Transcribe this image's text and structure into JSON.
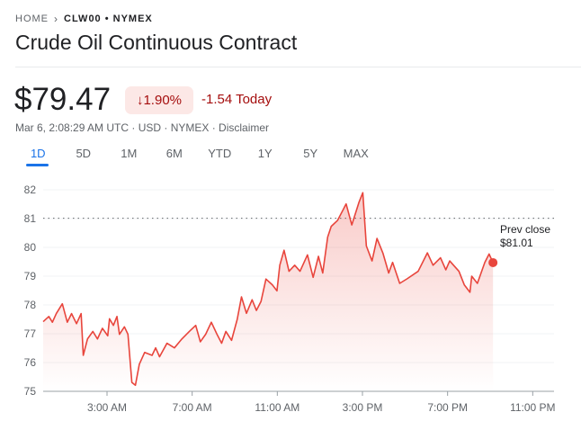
{
  "breadcrumb": {
    "home": "HOME",
    "current": "CLW00 • NYMEX"
  },
  "title": "Crude Oil Continuous Contract",
  "quote": {
    "price": "$79.47",
    "change_percent": "1.90%",
    "change_direction": "down",
    "change_today": "-1.54 Today",
    "meta": "Mar 6, 2:08:29 AM UTC · USD · NYMEX · Disclaimer"
  },
  "tabs": [
    {
      "label": "1D",
      "active": true
    },
    {
      "label": "5D"
    },
    {
      "label": "1M"
    },
    {
      "label": "6M"
    },
    {
      "label": "YTD"
    },
    {
      "label": "1Y"
    },
    {
      "label": "5Y"
    },
    {
      "label": "MAX"
    }
  ],
  "colors": {
    "line": "#e8453c",
    "negative": "#a50e0e",
    "badge_bg": "#fce8e6",
    "accent": "#1a73e8"
  },
  "chart_data": {
    "type": "area",
    "xlim": [
      "0:00",
      "24:00"
    ],
    "ylim": [
      75,
      82
    ],
    "y_ticks": [
      "75",
      "76",
      "77",
      "78",
      "79",
      "80",
      "81",
      "82"
    ],
    "x_ticks": [
      {
        "label": "3:00 AM",
        "t": "3:00"
      },
      {
        "label": "7:00 AM",
        "t": "7:00"
      },
      {
        "label": "11:00 AM",
        "t": "11:00"
      },
      {
        "label": "3:00 PM",
        "t": "15:00"
      },
      {
        "label": "7:00 PM",
        "t": "19:00"
      },
      {
        "label": "11:00 PM",
        "t": "23:00"
      }
    ],
    "grid": true,
    "prev_close": {
      "value": 81.01,
      "label": "Prev close",
      "value_label": "$81.01"
    },
    "points": [
      [
        "0:00",
        77.42
      ],
      [
        "0:16",
        77.6
      ],
      [
        "0:26",
        77.4
      ],
      [
        "0:37",
        77.7
      ],
      [
        "0:54",
        78.04
      ],
      [
        "1:08",
        77.4
      ],
      [
        "1:20",
        77.7
      ],
      [
        "1:34",
        77.35
      ],
      [
        "1:47",
        77.7
      ],
      [
        "1:53",
        76.25
      ],
      [
        "2:05",
        76.82
      ],
      [
        "2:20",
        77.08
      ],
      [
        "2:33",
        76.82
      ],
      [
        "2:47",
        77.19
      ],
      [
        "3:02",
        76.93
      ],
      [
        "3:07",
        77.52
      ],
      [
        "3:18",
        77.29
      ],
      [
        "3:28",
        77.6
      ],
      [
        "3:35",
        76.98
      ],
      [
        "3:49",
        77.24
      ],
      [
        "3:59",
        76.98
      ],
      [
        "4:10",
        75.31
      ],
      [
        "4:20",
        75.21
      ],
      [
        "4:31",
        75.94
      ],
      [
        "4:46",
        76.35
      ],
      [
        "5:07",
        76.25
      ],
      [
        "5:17",
        76.51
      ],
      [
        "5:28",
        76.2
      ],
      [
        "5:49",
        76.67
      ],
      [
        "6:10",
        76.51
      ],
      [
        "6:31",
        76.82
      ],
      [
        "6:52",
        77.08
      ],
      [
        "7:10",
        77.29
      ],
      [
        "7:23",
        76.72
      ],
      [
        "7:38",
        76.98
      ],
      [
        "7:54",
        77.4
      ],
      [
        "8:10",
        76.98
      ],
      [
        "8:23",
        76.67
      ],
      [
        "8:35",
        77.08
      ],
      [
        "8:51",
        76.77
      ],
      [
        "9:07",
        77.5
      ],
      [
        "9:19",
        78.28
      ],
      [
        "9:33",
        77.71
      ],
      [
        "9:49",
        78.18
      ],
      [
        "10:01",
        77.81
      ],
      [
        "10:14",
        78.12
      ],
      [
        "10:28",
        78.9
      ],
      [
        "10:46",
        78.7
      ],
      [
        "10:59",
        78.49
      ],
      [
        "11:07",
        79.38
      ],
      [
        "11:19",
        79.9
      ],
      [
        "11:33",
        79.17
      ],
      [
        "11:49",
        79.38
      ],
      [
        "12:04",
        79.17
      ],
      [
        "12:25",
        79.74
      ],
      [
        "12:41",
        78.96
      ],
      [
        "12:56",
        79.69
      ],
      [
        "13:08",
        79.11
      ],
      [
        "13:22",
        80.36
      ],
      [
        "13:32",
        80.73
      ],
      [
        "13:50",
        80.94
      ],
      [
        "14:14",
        81.51
      ],
      [
        "14:30",
        80.78
      ],
      [
        "14:50",
        81.56
      ],
      [
        "15:01",
        81.9
      ],
      [
        "15:11",
        80.05
      ],
      [
        "15:27",
        79.53
      ],
      [
        "15:41",
        80.31
      ],
      [
        "15:58",
        79.79
      ],
      [
        "16:14",
        79.11
      ],
      [
        "16:25",
        79.48
      ],
      [
        "16:45",
        78.75
      ],
      [
        "17:06",
        78.91
      ],
      [
        "17:37",
        79.17
      ],
      [
        "18:03",
        79.81
      ],
      [
        "18:19",
        79.38
      ],
      [
        "18:40",
        79.64
      ],
      [
        "18:55",
        79.22
      ],
      [
        "19:06",
        79.53
      ],
      [
        "19:32",
        79.17
      ],
      [
        "19:47",
        78.7
      ],
      [
        "20:03",
        78.44
      ],
      [
        "20:08",
        79.0
      ],
      [
        "20:24",
        78.75
      ],
      [
        "20:45",
        79.48
      ],
      [
        "20:57",
        79.77
      ],
      [
        "21:08",
        79.47
      ]
    ]
  }
}
